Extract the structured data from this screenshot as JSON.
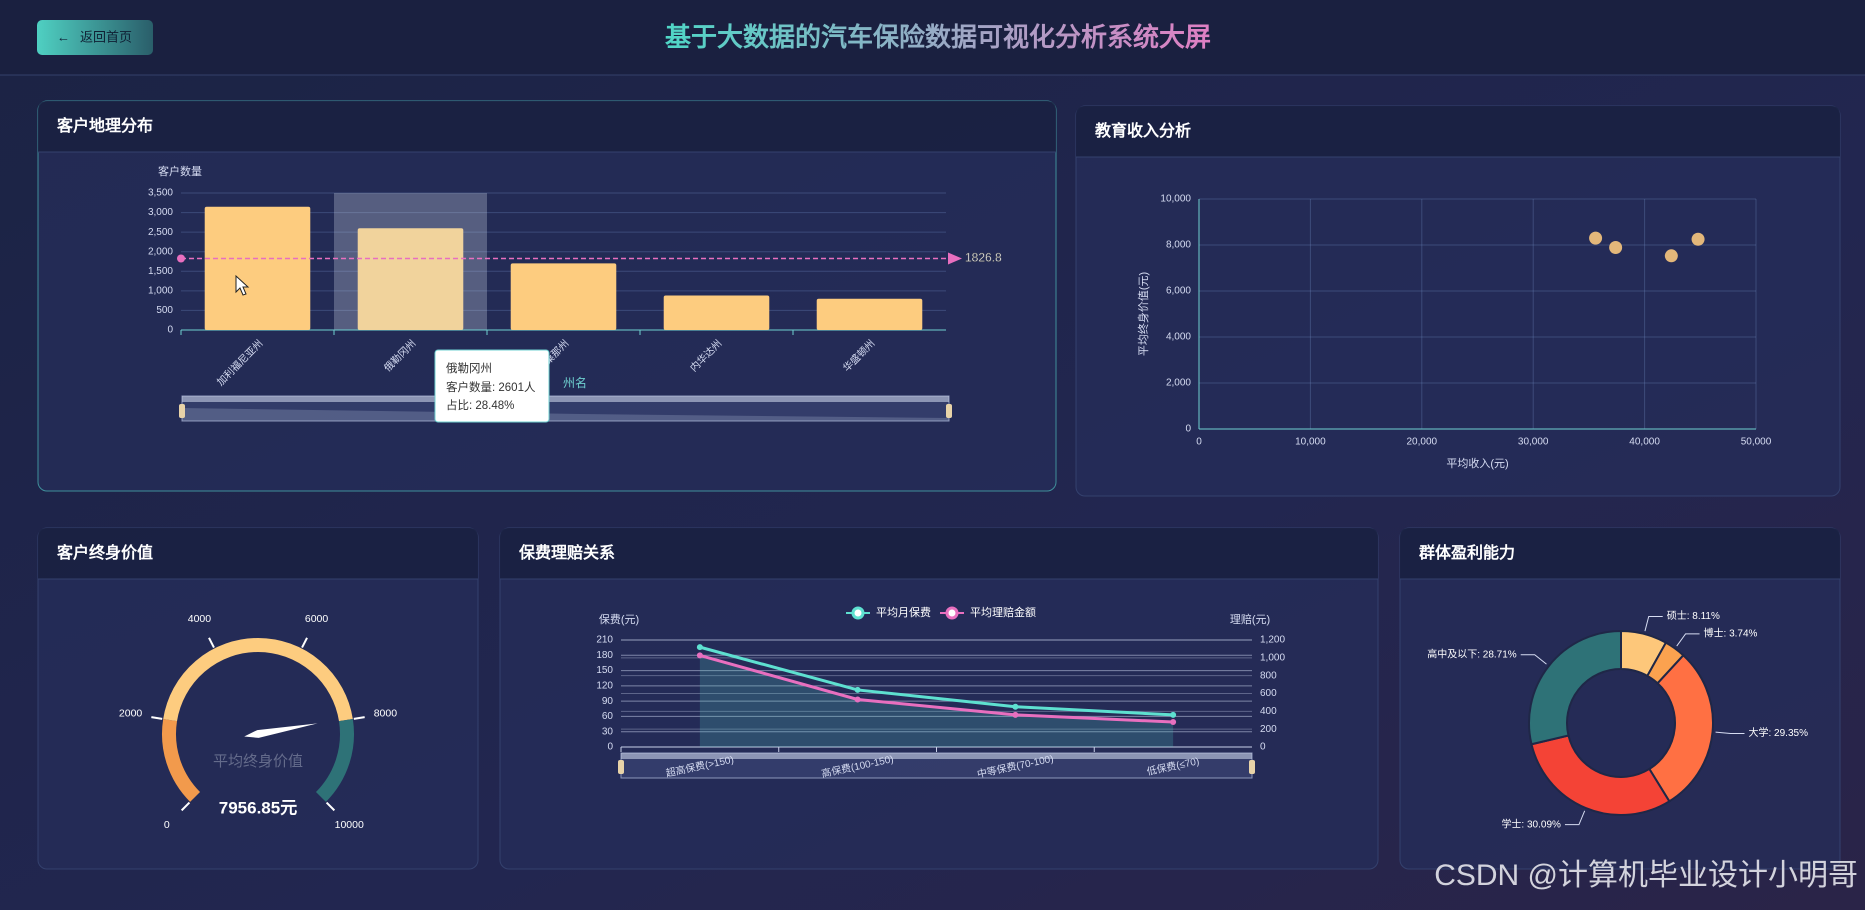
{
  "header": {
    "back_button": "返回首页",
    "title": "基于大数据的汽车保险数据可视化分析系统大屏"
  },
  "watermark": "CSDN @计算机毕业设计小明哥",
  "chart_data": [
    {
      "type": "bar",
      "title": "客户地理分布",
      "ylabel": "客户数量",
      "xlabel": "州名",
      "categories": [
        "加利福尼亚州",
        "俄勒冈州",
        "亚利桑那州",
        "内华达州",
        "华盛顿州"
      ],
      "values": [
        3150,
        2601,
        1703,
        882,
        798
      ],
      "color": "#fdcc7f",
      "ylim": [
        0,
        3500
      ],
      "yticks": [
        0,
        500,
        {
          "value": 1000,
          "label": "1,000"
        },
        {
          "value": 1500,
          "label": "1,500"
        },
        {
          "value": 2000,
          "label": "2,000"
        },
        {
          "value": 2500,
          "label": "2,500"
        },
        {
          "value": 3000,
          "label": "3,000"
        },
        {
          "value": 3500,
          "label": "3,500"
        }
      ],
      "grid": true,
      "mark_line": {
        "value": 1826.8,
        "color": "#e86fbf"
      },
      "tooltip": {
        "title": "俄勒冈州",
        "lines": [
          "客户数量: 2601人",
          "占比: 28.48%"
        ]
      }
    },
    {
      "type": "scatter",
      "title": "教育收入分析",
      "xlabel": "平均收入(元)",
      "ylabel": "平均终身价值(元)",
      "x": [
        35600,
        37400,
        42400,
        44800
      ],
      "values": [
        8300,
        7890,
        7530,
        8250
      ],
      "color": "#e3b77a",
      "xlim": [
        0,
        50000
      ],
      "xticks": [
        0,
        {
          "value": 10000,
          "label": "10,000"
        },
        {
          "value": 20000,
          "label": "20,000"
        },
        {
          "value": 30000,
          "label": "30,000"
        },
        {
          "value": 40000,
          "label": "40,000"
        },
        {
          "value": 50000,
          "label": "50,000"
        }
      ],
      "ylim": [
        0,
        10000
      ],
      "yticks": [
        0,
        {
          "value": 2000,
          "label": "2,000"
        },
        {
          "value": 4000,
          "label": "4,000"
        },
        {
          "value": 6000,
          "label": "6,000"
        },
        {
          "value": 8000,
          "label": "8,000"
        },
        {
          "value": 10000,
          "label": "10,000"
        }
      ],
      "grid": true
    },
    {
      "type": "gauge",
      "title": "客户终身价值",
      "series_name": "平均终身价值",
      "value": 7956.85,
      "value_label": "7956.85元",
      "ylim": [
        0,
        10000
      ],
      "yticks": [
        0,
        2000,
        4000,
        6000,
        8000,
        10000
      ],
      "bands": [
        [
          0.2,
          "#f29a4c"
        ],
        [
          0.8,
          "#fdcc7f"
        ],
        [
          1,
          "#2e7277"
        ]
      ]
    },
    {
      "type": "line",
      "title": "保费理赔关系",
      "ylabel": "保费(元)",
      "y2label": "理赔(元)",
      "categories": [
        "超高保费(>150)",
        "高保费(100-150)",
        "中等保费(70-100)",
        "低保费(≤70)"
      ],
      "series": [
        {
          "name": "平均月保费",
          "color": "#5ee0d0",
          "values": [
            196,
            112,
            79,
            63
          ]
        },
        {
          "name": "平均理赔金额",
          "color": "#e86fbf",
          "axis": "y2",
          "area": true,
          "values": [
            1027,
            533,
            360,
            280
          ]
        }
      ],
      "ylim": [
        0,
        210
      ],
      "yticks": [
        0,
        30,
        60,
        90,
        120,
        150,
        180,
        210
      ],
      "y2lim": [
        0,
        1200
      ],
      "y2ticks": [
        0,
        200,
        400,
        600,
        800,
        {
          "value": 1000,
          "label": "1,000"
        },
        {
          "value": 1200,
          "label": "1,200"
        }
      ],
      "grid": true
    },
    {
      "type": "pie",
      "title": "群体盈利能力",
      "categories": [
        "硕士",
        "博士",
        "大学",
        "学士",
        "高中及以下"
      ],
      "values": [
        8.11,
        3.74,
        29.35,
        30.09,
        28.71
      ],
      "value_labels": [
        "硕士: 8.11%",
        "博士: 3.74%",
        "大学: 29.35%",
        "学士: 30.09%",
        "高中及以下: 28.71%"
      ],
      "colors": [
        "#fdc77a",
        "#fba24f",
        "#ff7043",
        "#f44336",
        "#2e7277"
      ]
    }
  ]
}
